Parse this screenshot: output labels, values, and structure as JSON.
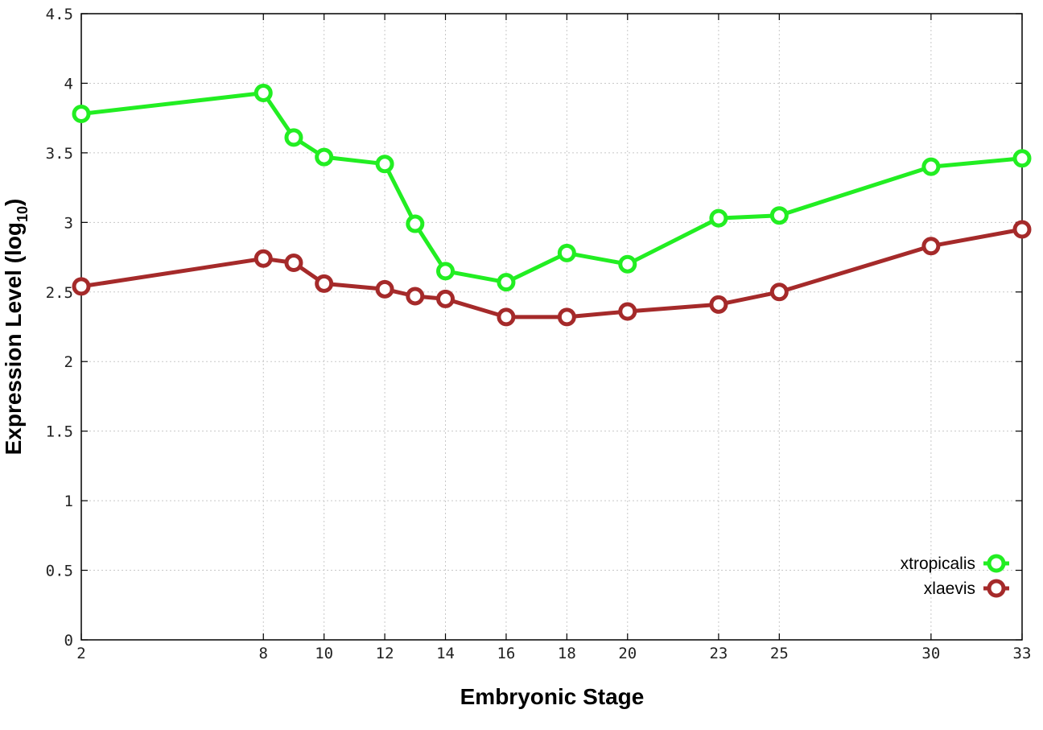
{
  "chart_data": {
    "type": "line",
    "xlabel": "Embryonic Stage",
    "ylabel_main": "Expression Level (log",
    "ylabel_sub": "10",
    "ylabel_close": ")",
    "x": [
      2,
      8,
      9,
      10,
      12,
      13,
      14,
      16,
      18,
      20,
      23,
      25,
      30,
      33
    ],
    "xticks": [
      2,
      8,
      10,
      12,
      14,
      16,
      18,
      20,
      23,
      25,
      30,
      33
    ],
    "xlim": [
      2,
      33
    ],
    "yticks": [
      "0",
      "0.5",
      "1",
      "1.5",
      "2",
      "2.5",
      "3",
      "3.5",
      "4",
      "4.5"
    ],
    "ylim": [
      0,
      4.5
    ],
    "grid": true,
    "legend_position": "bottom-right",
    "series": [
      {
        "name": "xtropicalis",
        "color": "#22ee22",
        "values": [
          3.78,
          3.93,
          3.61,
          3.47,
          3.42,
          2.99,
          2.65,
          2.57,
          2.78,
          2.7,
          3.03,
          3.05,
          3.4,
          3.46
        ]
      },
      {
        "name": "xlaevis",
        "color": "#a52a2a",
        "values": [
          2.54,
          2.74,
          2.71,
          2.56,
          2.52,
          2.47,
          2.45,
          2.32,
          2.32,
          2.36,
          2.41,
          2.5,
          2.83,
          2.95
        ]
      }
    ]
  }
}
